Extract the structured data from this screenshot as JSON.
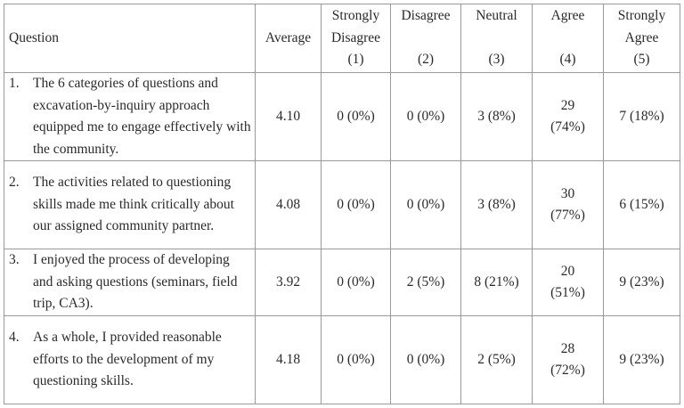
{
  "headers": {
    "question": "Question",
    "average": "Average",
    "strongly_disagree": [
      "Strongly",
      "Disagree",
      "(1)"
    ],
    "disagree": [
      "Disagree",
      "",
      "(2)"
    ],
    "neutral": [
      "Neutral",
      "",
      "(3)"
    ],
    "agree": [
      "Agree",
      "",
      "(4)"
    ],
    "strongly_agree": [
      "Strongly",
      "Agree",
      "(5)"
    ]
  },
  "rows": [
    {
      "num": "1.",
      "text": "The 6 categories of questions and excavation-by-inquiry approach equipped me to engage effectively with the community.",
      "average": "4.10",
      "strongly_disagree": "0 (0%)",
      "disagree": "0 (0%)",
      "neutral": "3 (8%)",
      "agree_count": "29",
      "agree_pct": "(74%)",
      "strongly_agree": "7 (18%)"
    },
    {
      "num": "2.",
      "text": "The activities related to questioning skills made me think critically about our assigned community partner.",
      "average": "4.08",
      "strongly_disagree": "0 (0%)",
      "disagree": "0 (0%)",
      "neutral": "3 (8%)",
      "agree_count": "30",
      "agree_pct": "(77%)",
      "strongly_agree": "6 (15%)"
    },
    {
      "num": "3.",
      "text": "I enjoyed the process of developing and asking questions (seminars, field trip, CA3).",
      "average": "3.92",
      "strongly_disagree": "0 (0%)",
      "disagree": "2 (5%)",
      "neutral": "8 (21%)",
      "agree_count": "20",
      "agree_pct": "(51%)",
      "strongly_agree": "9 (23%)"
    },
    {
      "num": "4.",
      "text": "As a whole, I provided reasonable efforts to the development of my questioning skills.",
      "average": "4.18",
      "strongly_disagree": "0 (0%)",
      "disagree": "0 (0%)",
      "neutral": "2 (5%)",
      "agree_count": "28",
      "agree_pct": "(72%)",
      "strongly_agree": "9 (23%)"
    }
  ]
}
